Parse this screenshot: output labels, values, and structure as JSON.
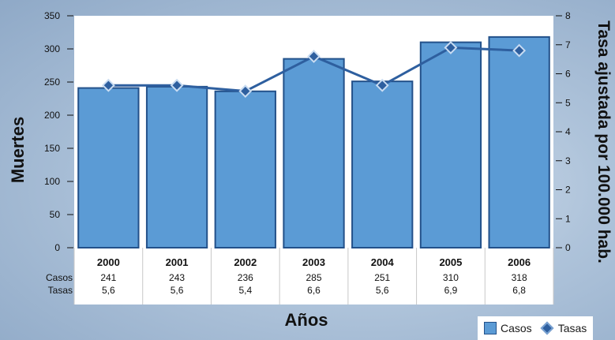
{
  "chart_data": {
    "type": "bar+line",
    "x_title": "Años",
    "y_left_title": "Muertes",
    "y_right_title": "Tasa ajustada por 100.000 hab.",
    "y_left_range": [
      0,
      350
    ],
    "y_left_ticks": [
      "0",
      "50",
      "100",
      "150",
      "200",
      "250",
      "300",
      "350"
    ],
    "y_right_range": [
      0,
      8
    ],
    "y_right_ticks": [
      "0",
      "1",
      "2",
      "3",
      "4",
      "5",
      "6",
      "7",
      "8"
    ],
    "categories": [
      "2000",
      "2001",
      "2002",
      "2003",
      "2004",
      "2005",
      "2006"
    ],
    "series": [
      {
        "name": "Casos",
        "type": "bar",
        "axis": "left",
        "values": [
          241,
          243,
          236,
          285,
          251,
          310,
          318
        ],
        "color": "#5b9bd5"
      },
      {
        "name": "Tasas",
        "type": "line",
        "axis": "right",
        "values": [
          5.6,
          5.6,
          5.4,
          6.6,
          5.6,
          6.9,
          6.8
        ],
        "color": "#2e5f9f"
      }
    ],
    "table": {
      "row_labels": [
        "Casos",
        "Tasas"
      ],
      "rows": [
        [
          "241",
          "243",
          "236",
          "285",
          "251",
          "310",
          "318"
        ],
        [
          "5,6",
          "5,6",
          "5,4",
          "6,6",
          "5,6",
          "6,9",
          "6,8"
        ]
      ]
    },
    "legend": [
      "Casos",
      "Tasas"
    ],
    "legend_position": "bottom-right",
    "grid": false
  }
}
